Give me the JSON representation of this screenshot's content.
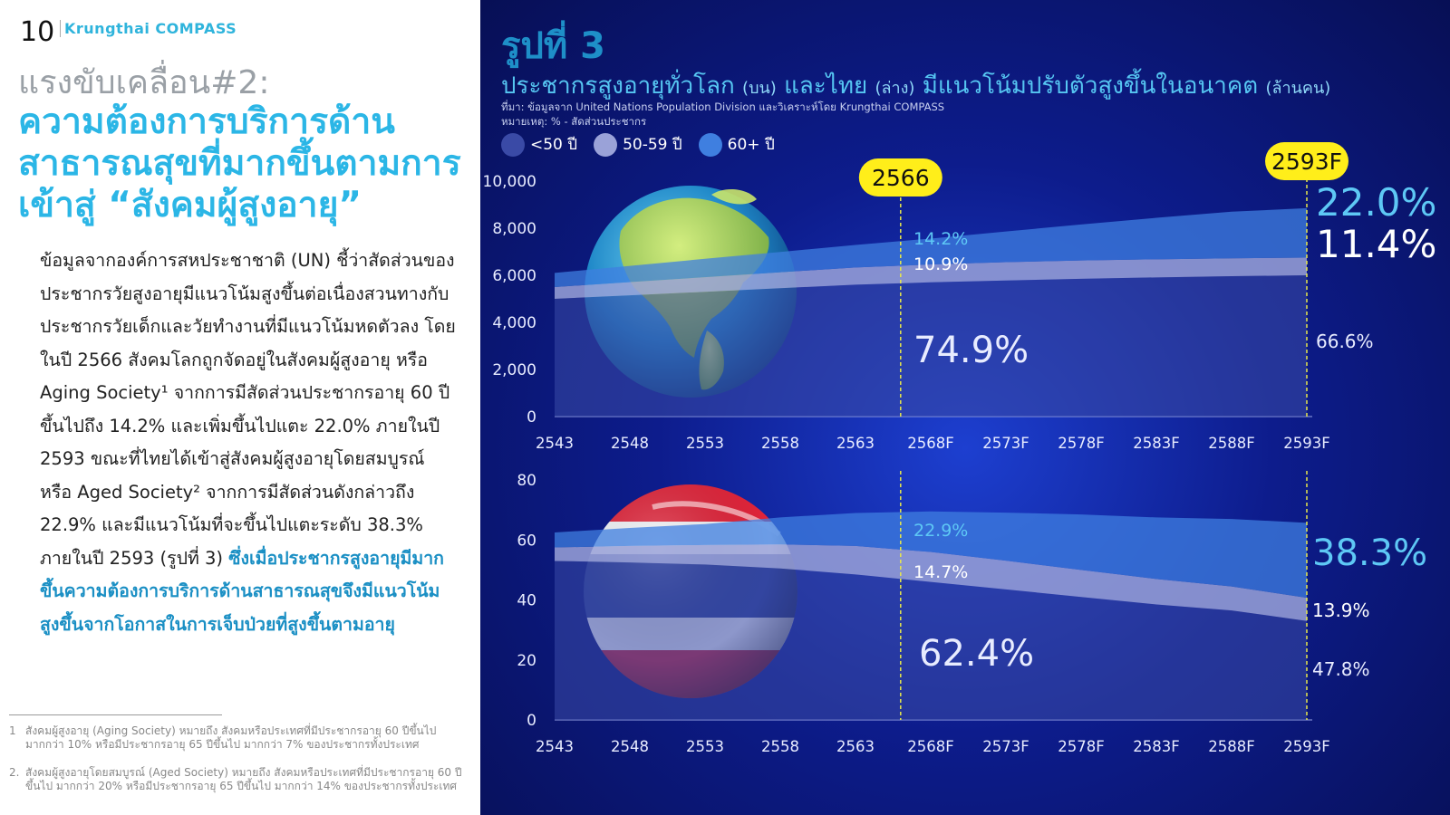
{
  "page": {
    "number": "10",
    "brand": "Krungthai COMPASS",
    "kicker": "แรงขับเคลื่อน#2:",
    "headline": "ความต้องการบริการด้านสาธารณสุขที่มากขึ้นตามการเข้าสู่ “สังคมผู้สูงอายุ”",
    "body_text": "ข้อมูลจากองค์การสหประชาชาติ (UN) ชี้ว่าสัดส่วนของประชากรวัยสูงอายุมีแนวโน้มสูงขึ้นต่อเนื่องสวนทางกับประชากรวัยเด็กและวัยทำงานที่มีแนวโน้มหดตัวลง โดยในปี 2566 สังคมโลกถูกจัดอยู่ในสังคมผู้สูงอายุ หรือ Aging Society¹ จากการมีสัดส่วนประชากรอายุ 60 ปีขึ้นไปถึง 14.2% และเพิ่มขึ้นไปแตะ 22.0% ภายในปี 2593 ขณะที่ไทยได้เข้าสู่สังคมผู้สูงอายุโดยสมบูรณ์ หรือ Aged Society² จากการมีสัดส่วนดังกล่าวถึง 22.9% และมีแนวโน้มที่จะขึ้นไปแตะระดับ 38.3% ภายในปี 2593 (รูปที่ 3) ",
    "body_highlight": "ซึ่งเมื่อประชากรสูงอายุมีมากขึ้นความต้องการบริการด้านสาธารณสุขจึงมีแนวโน้มสูงขึ้นจากโอกาสในการเจ็บป่วยที่สูงขึ้นตามอายุ",
    "footnotes": [
      {
        "mark": "1",
        "text": "สังคมผู้สูงอายุ (Aging Society) หมายถึง สังคมหรือประเทศที่มีประชากรอายุ 60 ปีขึ้นไป มากกว่า 10% หรือมีประชากรอายุ 65 ปีขึ้นไป มากกว่า 7% ของประชากรทั้งประเทศ"
      },
      {
        "mark": "2.",
        "text": "สังคมผู้สูงอายุโดยสมบูรณ์ (Aged Society) หมายถึง สังคมหรือประเทศที่มีประชากรอายุ 60 ปีขึ้นไป มากกว่า 20% หรือมีประชากรอายุ 65 ปีขึ้นไป มากกว่า 14% ของประชากรทั้งประเทศ"
      }
    ]
  },
  "figure": {
    "label": "รูปที่ 3",
    "title_parts": [
      "ประชากรสูงอายุทั่วโลก ",
      "(บน)",
      " และไทย ",
      "(ล่าง)",
      " มีแนวโน้มปรับตัวสูงขึ้นในอนาคต ",
      "(ล้านคน)"
    ],
    "source": "ที่มา: ข้อมูลจาก United Nations Population Division และวิเคราะห์โดย Krungthai COMPASS",
    "note": "หมายเหตุ: % - สัดส่วนประชากร",
    "legend": [
      {
        "label": "<50 ปี",
        "color": "#3a4aa6"
      },
      {
        "label": "50-59 ปี",
        "color": "#9aa2d8"
      },
      {
        "label": "60+ ปี",
        "color": "#3f7fe0"
      }
    ],
    "markers": [
      "2566",
      "2593F"
    ]
  },
  "chart_data": [
    {
      "type": "area",
      "stacked": true,
      "x": [
        "2543",
        "2548",
        "2553",
        "2558",
        "2563",
        "2568F",
        "2573F",
        "2578F",
        "2583F",
        "2588F",
        "2593F"
      ],
      "ylim": [
        0,
        10000
      ],
      "yticks": [
        "0",
        "2,000",
        "4,000",
        "6,000",
        "8,000",
        "10,000"
      ],
      "series": [
        {
          "name": "<50 ปี",
          "values": [
            5000,
            5150,
            5300,
            5450,
            5600,
            5700,
            5780,
            5850,
            5910,
            5960,
            6000
          ]
        },
        {
          "name": "50-59 ปี",
          "values": [
            500,
            560,
            620,
            680,
            730,
            760,
            780,
            780,
            770,
            760,
            750
          ]
        },
        {
          "name": "60+ ปี",
          "values": [
            600,
            690,
            780,
            860,
            960,
            1100,
            1300,
            1530,
            1760,
            1980,
            2100
          ]
        }
      ],
      "annotations": {
        "2566": {
          "60+": "14.2%",
          "50-59": "10.9%",
          "<50": "74.9%"
        },
        "2593F": {
          "60+": "22.0%",
          "50-59": "11.4%",
          "<50": "66.6%"
        }
      }
    },
    {
      "type": "area",
      "stacked": true,
      "x": [
        "2543",
        "2548",
        "2553",
        "2558",
        "2563",
        "2568F",
        "2573F",
        "2578F",
        "2583F",
        "2588F",
        "2593F"
      ],
      "ylim": [
        0,
        80
      ],
      "yticks": [
        "0",
        "20",
        "40",
        "60",
        "80"
      ],
      "series": [
        {
          "name": "<50 ปี",
          "values": [
            53,
            52.5,
            51.8,
            50.5,
            48.5,
            46,
            43.5,
            41,
            38.5,
            36.5,
            33
          ]
        },
        {
          "name": "50-59 ปี",
          "values": [
            4.5,
            5.5,
            6.5,
            8,
            9.5,
            10,
            9.6,
            9,
            8.5,
            8,
            7.7
          ]
        },
        {
          "name": "60+ ปี",
          "values": [
            5,
            6,
            7,
            9,
            11,
            13.5,
            16,
            18.5,
            20.5,
            22.5,
            25
          ]
        }
      ],
      "annotations": {
        "2566": {
          "60+": "22.9%",
          "50-59": "14.7%",
          "<50": "62.4%"
        },
        "2593F": {
          "60+": "38.3%",
          "50-59": "13.9%",
          "<50": "47.8%"
        }
      }
    }
  ]
}
